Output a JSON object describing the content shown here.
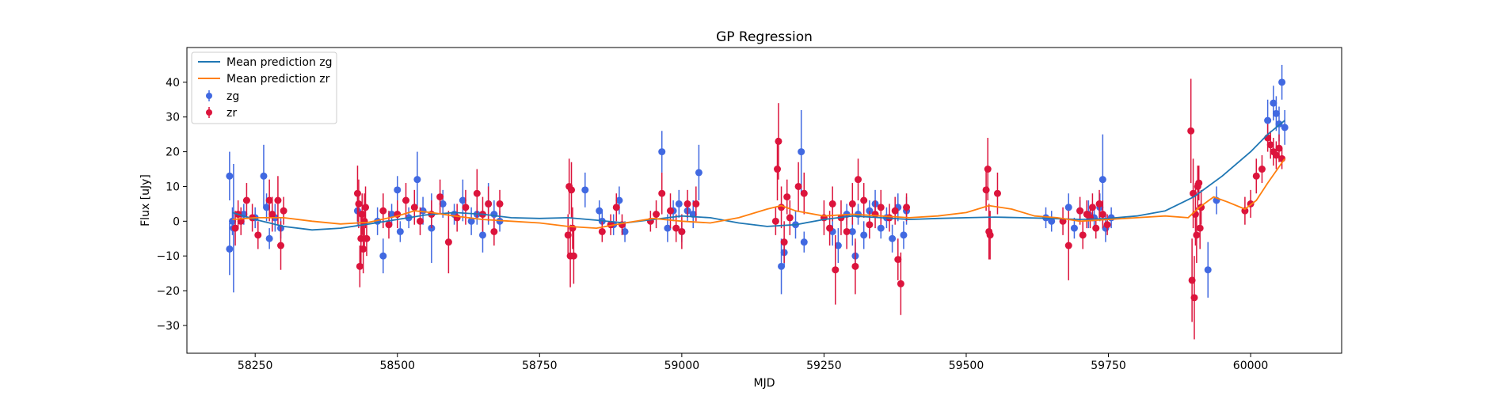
{
  "chart_data": {
    "type": "scatter",
    "title": "GP Regression",
    "xlabel": "MJD",
    "ylabel": "Flux [uJy]",
    "xlim": [
      58130,
      60160
    ],
    "ylim": [
      -38,
      50
    ],
    "xticks": [
      58250,
      58500,
      58750,
      59000,
      59250,
      59500,
      59750,
      60000
    ],
    "yticks": [
      -30,
      -20,
      -10,
      0,
      10,
      20,
      30,
      40
    ],
    "grid": false,
    "legend_position": "upper-left",
    "colors": {
      "pred_zg": "#1f77b4",
      "pred_zr": "#ff7f0e",
      "obs_zg": "#4169e1",
      "obs_zr": "#dc143c"
    },
    "lines": [
      {
        "name": "Mean prediction zg",
        "color": "#1f77b4",
        "x": [
          58210,
          58250,
          58300,
          58350,
          58400,
          58450,
          58500,
          58550,
          58600,
          58650,
          58700,
          58750,
          58800,
          58850,
          58900,
          58950,
          59000,
          59050,
          59100,
          59150,
          59200,
          59250,
          59300,
          59350,
          59400,
          59450,
          59500,
          59550,
          59600,
          59650,
          59700,
          59750,
          59800,
          59850,
          59900,
          59950,
          60000,
          60030,
          60060
        ],
        "y": [
          2.5,
          0.5,
          -1.5,
          -2.5,
          -2.0,
          -0.8,
          0.5,
          1.8,
          2.5,
          2.0,
          1.0,
          0.8,
          1.0,
          0.3,
          -0.5,
          0.5,
          1.5,
          1.0,
          -0.5,
          -1.5,
          -1.0,
          0.5,
          1.5,
          1.0,
          0.5,
          0.8,
          1.0,
          1.2,
          1.0,
          0.8,
          0.5,
          0.8,
          1.5,
          3.0,
          7.0,
          13.0,
          20.0,
          25.0,
          29.0
        ]
      },
      {
        "name": "Mean prediction zr",
        "color": "#ff7f0e",
        "x": [
          58210,
          58250,
          58300,
          58350,
          58400,
          58450,
          58500,
          58530,
          58560,
          58600,
          58650,
          58700,
          58750,
          58800,
          58850,
          58900,
          58950,
          59000,
          59050,
          59100,
          59150,
          59175,
          59200,
          59250,
          59300,
          59350,
          59400,
          59450,
          59500,
          59540,
          59580,
          59620,
          59660,
          59700,
          59750,
          59800,
          59850,
          59890,
          59910,
          59935,
          59960,
          59990,
          60010,
          60030,
          60060
        ],
        "y": [
          0.5,
          1.0,
          1.0,
          0.0,
          -0.8,
          -0.3,
          1.5,
          3.0,
          2.5,
          1.5,
          0.5,
          0.0,
          -0.5,
          -1.5,
          -2.0,
          -0.5,
          0.8,
          0.0,
          -0.5,
          1.0,
          3.5,
          4.5,
          3.0,
          1.5,
          2.0,
          1.5,
          1.0,
          1.5,
          2.5,
          4.5,
          3.5,
          1.5,
          1.0,
          0.0,
          0.5,
          1.0,
          1.5,
          1.0,
          4.0,
          7.0,
          5.5,
          3.5,
          6.0,
          11.0,
          18.0
        ]
      }
    ],
    "series": [
      {
        "name": "zg",
        "color": "#4169e1",
        "points": [
          [
            58205,
            13,
            7
          ],
          [
            58205,
            -8,
            7.5
          ],
          [
            58210,
            0,
            4
          ],
          [
            58212,
            -2,
            18.5
          ],
          [
            58230,
            2,
            3
          ],
          [
            58250,
            1,
            3
          ],
          [
            58265,
            13,
            9
          ],
          [
            58270,
            4,
            4
          ],
          [
            58275,
            -5,
            3
          ],
          [
            58285,
            1,
            4
          ],
          [
            58295,
            -2,
            3
          ],
          [
            58430,
            3,
            4
          ],
          [
            58465,
            0,
            4
          ],
          [
            58475,
            -10,
            5
          ],
          [
            58490,
            2,
            3
          ],
          [
            58500,
            9,
            4
          ],
          [
            58505,
            -3,
            3
          ],
          [
            58520,
            1,
            3
          ],
          [
            58535,
            12,
            8
          ],
          [
            58545,
            3,
            4
          ],
          [
            58560,
            -2,
            10
          ],
          [
            58580,
            5,
            4
          ],
          [
            58600,
            2,
            3
          ],
          [
            58615,
            6,
            6
          ],
          [
            58630,
            0,
            4
          ],
          [
            58640,
            2,
            3
          ],
          [
            58650,
            -4,
            5
          ],
          [
            58660,
            5,
            6
          ],
          [
            58670,
            2,
            4
          ],
          [
            58680,
            0,
            3
          ],
          [
            58830,
            9,
            5
          ],
          [
            58855,
            3,
            3
          ],
          [
            58860,
            0,
            3
          ],
          [
            58880,
            -1,
            3
          ],
          [
            58890,
            6,
            4
          ],
          [
            58900,
            -3,
            3
          ],
          [
            58965,
            20,
            6
          ],
          [
            58975,
            -2,
            4
          ],
          [
            58985,
            3,
            3
          ],
          [
            58995,
            5,
            4
          ],
          [
            59000,
            -3,
            3
          ],
          [
            59010,
            3,
            3
          ],
          [
            59020,
            2,
            4
          ],
          [
            59030,
            14,
            8
          ],
          [
            59175,
            -13,
            8
          ],
          [
            59180,
            -9,
            4
          ],
          [
            59200,
            -1,
            4
          ],
          [
            59210,
            20,
            12
          ],
          [
            59215,
            -6,
            3
          ],
          [
            59265,
            -3,
            4
          ],
          [
            59275,
            -7,
            5
          ],
          [
            59290,
            2,
            3
          ],
          [
            59300,
            -3,
            4
          ],
          [
            59305,
            -10,
            4
          ],
          [
            59310,
            2,
            3
          ],
          [
            59320,
            -4,
            4
          ],
          [
            59330,
            3,
            3
          ],
          [
            59340,
            5,
            4
          ],
          [
            59350,
            -2,
            3
          ],
          [
            59360,
            1,
            3
          ],
          [
            59370,
            -5,
            4
          ],
          [
            59380,
            4,
            4
          ],
          [
            59390,
            -4,
            4
          ],
          [
            59395,
            3,
            4
          ],
          [
            59640,
            1,
            3
          ],
          [
            59650,
            0,
            3
          ],
          [
            59680,
            4,
            4
          ],
          [
            59690,
            -2,
            3
          ],
          [
            59700,
            3,
            3
          ],
          [
            59715,
            2,
            4
          ],
          [
            59725,
            1,
            3
          ],
          [
            59735,
            4,
            4
          ],
          [
            59740,
            12,
            13
          ],
          [
            59745,
            -2,
            4
          ],
          [
            59755,
            1,
            3
          ],
          [
            59925,
            -14,
            8
          ],
          [
            59940,
            6,
            4
          ],
          [
            60030,
            29,
            6
          ],
          [
            60040,
            34,
            5
          ],
          [
            60045,
            31,
            5
          ],
          [
            60050,
            28,
            5
          ],
          [
            60055,
            40,
            5
          ],
          [
            60060,
            27,
            5
          ]
        ]
      },
      {
        "name": "zr",
        "color": "#dc143c",
        "points": [
          [
            58215,
            -2,
            5
          ],
          [
            58220,
            2,
            4
          ],
          [
            58225,
            0,
            4
          ],
          [
            58235,
            6,
            5
          ],
          [
            58245,
            1,
            4
          ],
          [
            58255,
            -4,
            4
          ],
          [
            58275,
            6,
            6
          ],
          [
            58280,
            2,
            5
          ],
          [
            58290,
            6,
            7
          ],
          [
            58295,
            -7,
            7
          ],
          [
            58300,
            3,
            4
          ],
          [
            58430,
            8,
            8
          ],
          [
            58432,
            5,
            7
          ],
          [
            58434,
            -13,
            6
          ],
          [
            58436,
            -5,
            8
          ],
          [
            58438,
            2,
            6
          ],
          [
            58440,
            -8,
            7
          ],
          [
            58442,
            0,
            8
          ],
          [
            58444,
            4,
            6
          ],
          [
            58446,
            -5,
            5
          ],
          [
            58475,
            3,
            5
          ],
          [
            58485,
            -1,
            4
          ],
          [
            58500,
            2,
            4
          ],
          [
            58515,
            6,
            5
          ],
          [
            58530,
            4,
            5
          ],
          [
            58540,
            0,
            4
          ],
          [
            58560,
            2,
            4
          ],
          [
            58575,
            7,
            5
          ],
          [
            58590,
            -6,
            9
          ],
          [
            58605,
            1,
            4
          ],
          [
            58620,
            4,
            5
          ],
          [
            58640,
            8,
            7
          ],
          [
            58650,
            2,
            5
          ],
          [
            58660,
            5,
            5
          ],
          [
            58670,
            -3,
            4
          ],
          [
            58680,
            5,
            4
          ],
          [
            58800,
            -4,
            6
          ],
          [
            58802,
            10,
            8
          ],
          [
            58804,
            -10,
            9
          ],
          [
            58806,
            9,
            8
          ],
          [
            58808,
            -2,
            6
          ],
          [
            58810,
            -10,
            8
          ],
          [
            58860,
            -3,
            3
          ],
          [
            58875,
            -1,
            3
          ],
          [
            58885,
            4,
            4
          ],
          [
            58895,
            -1,
            3
          ],
          [
            58945,
            0,
            3
          ],
          [
            58955,
            2,
            4
          ],
          [
            58965,
            8,
            6
          ],
          [
            58980,
            3,
            5
          ],
          [
            58990,
            -2,
            4
          ],
          [
            59000,
            -3,
            5
          ],
          [
            59010,
            5,
            4
          ],
          [
            59025,
            5,
            5
          ],
          [
            59165,
            0,
            4
          ],
          [
            59168,
            15,
            9
          ],
          [
            59170,
            23,
            11
          ],
          [
            59175,
            4,
            6
          ],
          [
            59180,
            -6,
            6
          ],
          [
            59185,
            7,
            5
          ],
          [
            59190,
            1,
            5
          ],
          [
            59205,
            10,
            7
          ],
          [
            59215,
            8,
            6
          ],
          [
            59250,
            1,
            5
          ],
          [
            59260,
            -2,
            5
          ],
          [
            59265,
            5,
            5
          ],
          [
            59270,
            -14,
            10
          ],
          [
            59280,
            1,
            5
          ],
          [
            59290,
            -3,
            5
          ],
          [
            59300,
            5,
            6
          ],
          [
            59305,
            -13,
            8
          ],
          [
            59310,
            12,
            6
          ],
          [
            59320,
            6,
            5
          ],
          [
            59330,
            -1,
            4
          ],
          [
            59340,
            2,
            4
          ],
          [
            59350,
            4,
            5
          ],
          [
            59365,
            1,
            4
          ],
          [
            59375,
            3,
            4
          ],
          [
            59380,
            -11,
            6
          ],
          [
            59385,
            -18,
            9
          ],
          [
            59395,
            4,
            4
          ],
          [
            59535,
            9,
            6
          ],
          [
            59538,
            15,
            9
          ],
          [
            59540,
            -3,
            8
          ],
          [
            59542,
            -4,
            7
          ],
          [
            59555,
            8,
            6
          ],
          [
            59670,
            0,
            4
          ],
          [
            59680,
            -7,
            10
          ],
          [
            59700,
            3,
            4
          ],
          [
            59705,
            -4,
            4
          ],
          [
            59712,
            2,
            4
          ],
          [
            59718,
            1,
            3
          ],
          [
            59722,
            4,
            4
          ],
          [
            59728,
            -2,
            3
          ],
          [
            59734,
            5,
            4
          ],
          [
            59740,
            2,
            4
          ],
          [
            59748,
            -1,
            3
          ],
          [
            59895,
            26,
            15
          ],
          [
            59897,
            -17,
            12
          ],
          [
            59899,
            8,
            10
          ],
          [
            59901,
            -22,
            12
          ],
          [
            59903,
            2,
            9
          ],
          [
            59905,
            -4,
            8
          ],
          [
            59907,
            10,
            6
          ],
          [
            59909,
            11,
            5
          ],
          [
            59911,
            -2,
            6
          ],
          [
            59913,
            4,
            5
          ],
          [
            59990,
            3,
            4
          ],
          [
            60000,
            5,
            4
          ],
          [
            60010,
            13,
            5
          ],
          [
            60020,
            15,
            4
          ],
          [
            60030,
            24,
            4
          ],
          [
            60035,
            22,
            4
          ],
          [
            60040,
            20,
            4
          ],
          [
            60045,
            19,
            4
          ],
          [
            60050,
            21,
            4
          ],
          [
            60055,
            18,
            3
          ]
        ]
      }
    ]
  }
}
